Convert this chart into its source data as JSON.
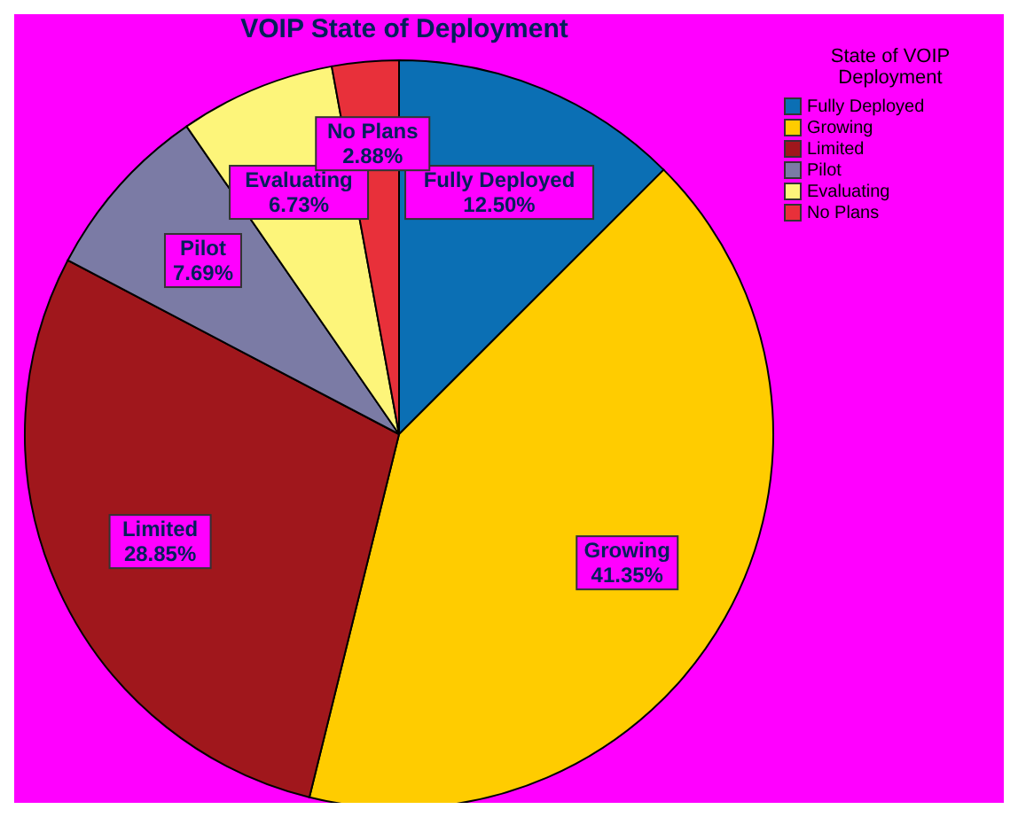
{
  "chart_data": {
    "type": "pie",
    "title": "VOIP State of Deployment",
    "legend_title": "State of VOIP Deployment",
    "legend": "top right",
    "categories": [
      "Fully Deployed",
      "Growing",
      "Limited",
      "Pilot",
      "Evaluating",
      "No Plans"
    ],
    "values": [
      12.5,
      41.35,
      28.85,
      7.69,
      6.73,
      2.88
    ],
    "value_labels": [
      "12.50%",
      "41.35%",
      "28.85%",
      "7.69%",
      "6.73%",
      "2.88%"
    ],
    "colors": [
      "#0b6fb4",
      "#ffcc00",
      "#a0171c",
      "#7b7ba5",
      "#fdf57a",
      "#e8303a"
    ]
  }
}
